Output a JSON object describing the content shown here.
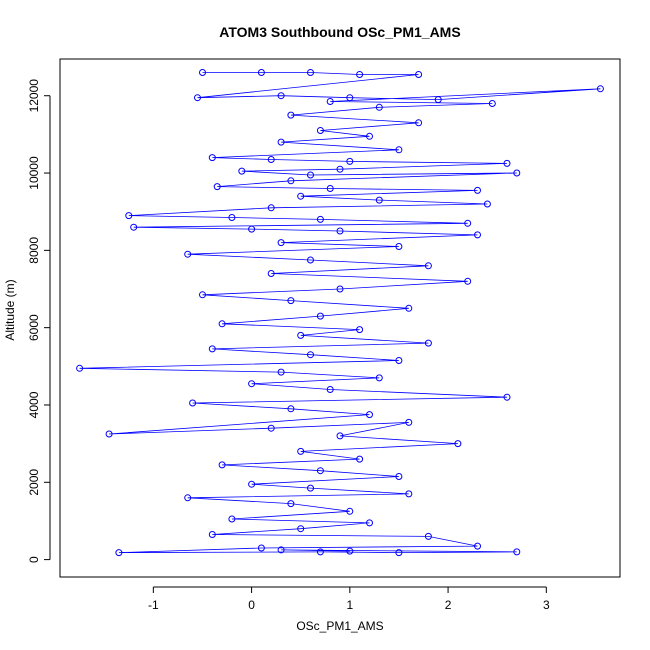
{
  "chart_data": {
    "type": "scatter",
    "title": "ATOM3 Southbound OSc_PM1_AMS",
    "xlabel": "OSc_PM1_AMS",
    "ylabel": "Altitude (m)",
    "xlim": [
      -1.95,
      3.75
    ],
    "ylim": [
      -450,
      12950
    ],
    "xticks": [
      -1,
      0,
      1,
      2,
      3
    ],
    "yticks": [
      0,
      2000,
      4000,
      6000,
      8000,
      10000,
      12000
    ],
    "x_tick_labels": [
      "-1",
      "0",
      "1",
      "2",
      "3"
    ],
    "y_tick_labels": [
      "0",
      "2000",
      "4000",
      "6000",
      "8000",
      "10000",
      "12000"
    ],
    "series": [
      {
        "color": "#0000ff",
        "marker": "open-circle",
        "connected": true,
        "points": [
          [
            -0.5,
            12600
          ],
          [
            0.1,
            12600
          ],
          [
            0.6,
            12600
          ],
          [
            1.1,
            12550
          ],
          [
            1.7,
            12550
          ],
          [
            -0.55,
            11950
          ],
          [
            0.3,
            12000
          ],
          [
            1.0,
            11950
          ],
          [
            1.9,
            11900
          ],
          [
            3.55,
            12180
          ],
          [
            0.8,
            11850
          ],
          [
            2.45,
            11800
          ],
          [
            1.3,
            11700
          ],
          [
            0.4,
            11500
          ],
          [
            1.7,
            11300
          ],
          [
            0.7,
            11100
          ],
          [
            1.2,
            10950
          ],
          [
            0.3,
            10800
          ],
          [
            1.5,
            10600
          ],
          [
            -0.4,
            10400
          ],
          [
            0.2,
            10350
          ],
          [
            1.0,
            10300
          ],
          [
            2.6,
            10250
          ],
          [
            0.9,
            10100
          ],
          [
            -0.1,
            10050
          ],
          [
            0.6,
            9950
          ],
          [
            2.7,
            10000
          ],
          [
            0.4,
            9800
          ],
          [
            -0.35,
            9650
          ],
          [
            0.8,
            9600
          ],
          [
            2.3,
            9550
          ],
          [
            0.5,
            9400
          ],
          [
            1.3,
            9300
          ],
          [
            2.4,
            9200
          ],
          [
            0.2,
            9100
          ],
          [
            -1.25,
            8900
          ],
          [
            -0.2,
            8850
          ],
          [
            0.7,
            8800
          ],
          [
            2.2,
            8700
          ],
          [
            -1.2,
            8600
          ],
          [
            0.0,
            8550
          ],
          [
            0.9,
            8500
          ],
          [
            2.3,
            8400
          ],
          [
            0.3,
            8200
          ],
          [
            1.5,
            8100
          ],
          [
            -0.65,
            7900
          ],
          [
            0.6,
            7750
          ],
          [
            1.8,
            7600
          ],
          [
            0.2,
            7400
          ],
          [
            2.2,
            7200
          ],
          [
            0.9,
            7000
          ],
          [
            -0.5,
            6850
          ],
          [
            0.4,
            6700
          ],
          [
            1.6,
            6500
          ],
          [
            0.7,
            6300
          ],
          [
            -0.3,
            6100
          ],
          [
            1.1,
            5950
          ],
          [
            0.5,
            5800
          ],
          [
            1.8,
            5600
          ],
          [
            -0.4,
            5450
          ],
          [
            0.6,
            5300
          ],
          [
            1.5,
            5150
          ],
          [
            -1.75,
            4950
          ],
          [
            0.3,
            4850
          ],
          [
            1.3,
            4700
          ],
          [
            0.0,
            4550
          ],
          [
            0.8,
            4400
          ],
          [
            2.6,
            4200
          ],
          [
            -0.6,
            4050
          ],
          [
            0.4,
            3900
          ],
          [
            1.2,
            3750
          ],
          [
            -1.45,
            3250
          ],
          [
            0.2,
            3400
          ],
          [
            1.6,
            3550
          ],
          [
            0.9,
            3200
          ],
          [
            2.1,
            3000
          ],
          [
            0.5,
            2800
          ],
          [
            1.1,
            2600
          ],
          [
            -0.3,
            2450
          ],
          [
            0.7,
            2300
          ],
          [
            1.5,
            2150
          ],
          [
            0.0,
            1950
          ],
          [
            0.6,
            1850
          ],
          [
            1.6,
            1700
          ],
          [
            -0.65,
            1600
          ],
          [
            0.4,
            1450
          ],
          [
            1.0,
            1250
          ],
          [
            -0.2,
            1050
          ],
          [
            1.2,
            950
          ],
          [
            0.5,
            800
          ],
          [
            -0.4,
            650
          ],
          [
            1.8,
            600
          ],
          [
            2.3,
            350
          ],
          [
            0.1,
            300
          ],
          [
            -1.35,
            180
          ],
          [
            0.7,
            200
          ],
          [
            1.5,
            180
          ],
          [
            2.7,
            200
          ],
          [
            0.3,
            250
          ],
          [
            1.0,
            220
          ]
        ]
      }
    ]
  }
}
